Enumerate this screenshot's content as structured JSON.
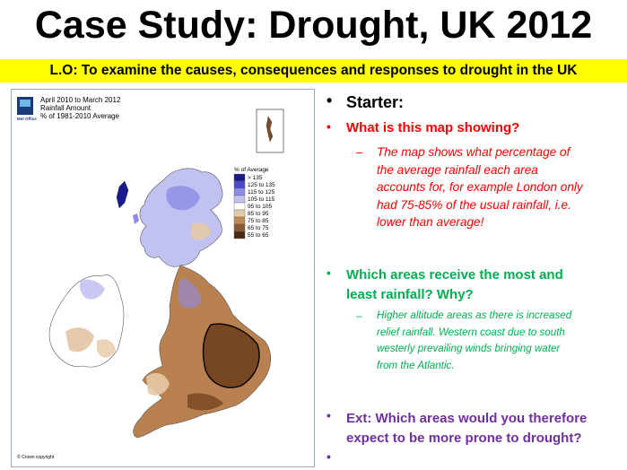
{
  "title": "Case Study: Drought, UK 2012",
  "learning_objective": "L.O: To examine the causes, consequences and responses to drought in the UK",
  "map": {
    "caption_line1": "April 2010 to March 2012",
    "caption_line2": "Rainfall Amount",
    "caption_line3": "% of 1981-2010 Average",
    "logo_text": "Met Office",
    "copyright": "© Crown copyright",
    "legend_title": "% of Average",
    "legend": [
      {
        "label": "> 135",
        "color": "#1a1a8c"
      },
      {
        "label": "125 to 135",
        "color": "#4a4acc"
      },
      {
        "label": "115 to 125",
        "color": "#8c8ce6"
      },
      {
        "label": "105 to 115",
        "color": "#c2c2f2"
      },
      {
        "label": "95 to 105",
        "color": "#ffffff"
      },
      {
        "label": "85 to 95",
        "color": "#e6c9a6"
      },
      {
        "label": "75 to 85",
        "color": "#c08a55"
      },
      {
        "label": "65 to 75",
        "color": "#8c5a2e"
      },
      {
        "label": "55 to 65",
        "color": "#4d2a12"
      }
    ]
  },
  "notes": {
    "starter": "Starter:",
    "q1": "What is this map showing?",
    "a1_line1": "The map shows what percentage of",
    "a1_line2": "the average rainfall each area",
    "a1_line3": "accounts for, for example London only",
    "a1_line4": "had 75-85% of the usual rainfall, i.e.",
    "a1_line5": "lower than average!",
    "q2_line1": "Which areas receive the most and",
    "q2_line2": "least rainfall? Why?",
    "a2_line1": "Higher altitude areas as there is increased",
    "a2_line2": "relief rainfall. Western coast due to south",
    "a2_line3": "westerly prevailing winds bringing water",
    "a2_line4": "from the Atlantic.",
    "ext_line1": "Ext: Which areas would you therefore",
    "ext_line2": "expect to be more prone to drought?",
    "colors": {
      "starter": "#000000",
      "red": "#ff0000",
      "green": "#00b050",
      "purple": "#7030a0"
    }
  }
}
